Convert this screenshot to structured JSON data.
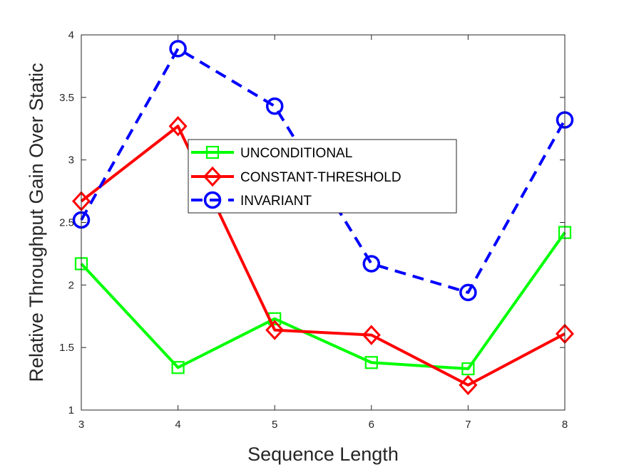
{
  "chart_data": {
    "type": "line",
    "xlabel": "Sequence Length",
    "ylabel": "Relative Throughput Gain Over Static",
    "x": [
      3,
      4,
      5,
      6,
      7,
      8
    ],
    "xlim": [
      3,
      8
    ],
    "ylim": [
      1,
      4
    ],
    "xticks": [
      "3",
      "4",
      "5",
      "6",
      "7",
      "8"
    ],
    "yticks": [
      "1",
      "1.5",
      "2",
      "2.5",
      "3",
      "3.5",
      "4"
    ],
    "legend_position": "upper-center",
    "grid": false,
    "series": [
      {
        "name": "UNCONDITIONAL",
        "color": "#00ff00",
        "marker": "square",
        "dash": "solid",
        "values": [
          2.17,
          1.34,
          1.73,
          1.38,
          1.33,
          2.42
        ]
      },
      {
        "name": "CONSTANT-THRESHOLD",
        "color": "#ff0000",
        "marker": "diamond",
        "dash": "solid",
        "values": [
          2.67,
          3.27,
          1.64,
          1.6,
          1.2,
          1.61
        ]
      },
      {
        "name": "INVARIANT",
        "color": "#0000ff",
        "marker": "circle",
        "dash": "dashed",
        "values": [
          2.52,
          3.89,
          3.43,
          2.17,
          1.94,
          3.32
        ]
      }
    ]
  }
}
